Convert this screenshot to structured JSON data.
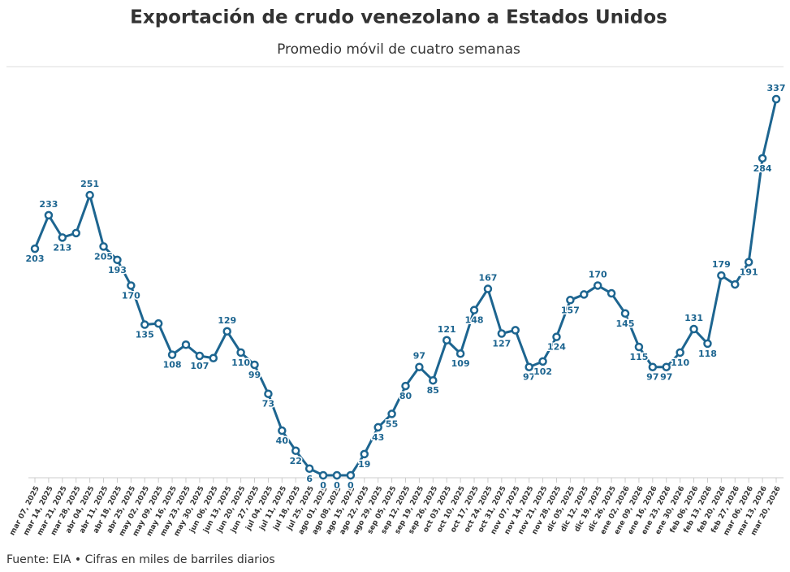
{
  "chart_data": {
    "type": "line",
    "title": "Exportación de crudo venezolano a Estados Unidos",
    "subtitle": "Promedio móvil de cuatro semanas",
    "source": "Fuente: EIA • Cifras en miles de barriles diarios",
    "color": "#1d6590",
    "categories": [
      "mar 07, 2025",
      "mar 14, 2025",
      "mar 21, 2025",
      "mar 28, 2025",
      "abr 04, 2025",
      "abr 11, 2025",
      "abr 18, 2025",
      "abr 25, 2025",
      "may 02, 2025",
      "may 09, 2025",
      "may 16, 2025",
      "may 23, 2025",
      "may 30, 2025",
      "jun 06, 2025",
      "jun 13, 2025",
      "jun 20, 2025",
      "jun 27, 2025",
      "jul 04, 2025",
      "jul 11, 2025",
      "jul 18, 2025",
      "jul 25, 2025",
      "ago 01, 2025",
      "ago 08, 2025",
      "ago 15, 2025",
      "ago 22, 2025",
      "ago 29, 2025",
      "sep 05, 2025",
      "sep 12, 2025",
      "sep 19, 2025",
      "sep 26, 2025",
      "oct 03, 2025",
      "oct 10, 2025",
      "oct 17, 2025",
      "oct 24, 2025",
      "oct 31, 2025",
      "nov 07, 2025",
      "nov 14, 2025",
      "nov 21, 2025",
      "nov 28, 2025",
      "dic 05, 2025",
      "dic 12, 2025",
      "dic 19, 2025",
      "dic 26, 2025",
      "ene 02, 2026",
      "ene 09, 2026",
      "ene 16, 2026",
      "ene 23, 2026",
      "ene 30, 2026",
      "feb 06, 2026",
      "feb 13, 2026",
      "feb 20, 2026",
      "feb 27, 2026",
      "mar 06, 2026",
      "mar 13, 2026",
      "mar 20, 2026"
    ],
    "values": [
      203,
      233,
      213,
      217,
      251,
      205,
      193,
      170,
      135,
      136,
      108,
      117,
      107,
      105,
      129,
      110,
      99,
      73,
      40,
      22,
      6,
      0,
      0,
      0,
      19,
      43,
      55,
      80,
      97,
      85,
      121,
      109,
      148,
      167,
      127,
      130,
      97,
      102,
      124,
      157,
      162,
      170,
      163,
      145,
      115,
      97,
      97,
      110,
      131,
      118,
      179,
      171,
      191,
      284,
      337
    ],
    "value_labels": [
      "203",
      "233",
      "213",
      null,
      "251",
      "205",
      "193",
      "170",
      "135",
      null,
      "108",
      null,
      "107",
      null,
      "129",
      "110",
      "99",
      "73",
      "40",
      "22",
      "6",
      "0",
      "0",
      "0",
      "19",
      "43",
      "55",
      "80",
      "97",
      "85",
      "121",
      "109",
      "148",
      "167",
      "127",
      null,
      "97",
      "102",
      "124",
      "157",
      null,
      "170",
      null,
      "145",
      "115",
      "97",
      "97",
      "110",
      "131",
      "118",
      "179",
      null,
      "191",
      "284",
      "337"
    ]
  }
}
